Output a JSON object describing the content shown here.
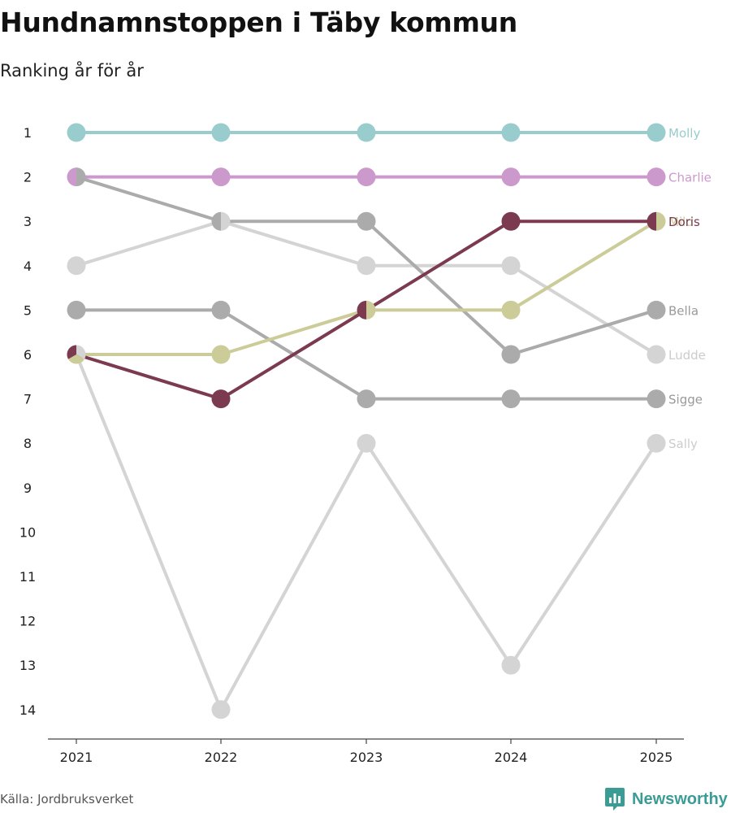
{
  "title": "Hundnamnstoppen i Täby kommun",
  "subtitle": "Ranking år för år",
  "source": "Källa: Jordbruksverket",
  "brand": "Newsworthy",
  "chart_data": {
    "type": "line",
    "subtype": "bump",
    "title": "Hundnamnstoppen i Täby kommun",
    "subtitle": "Ranking år för år",
    "categories": [
      "2021",
      "2022",
      "2023",
      "2024",
      "2025"
    ],
    "ylabel": "",
    "ylim": [
      1,
      14
    ],
    "y_inverted": true,
    "yticks": [
      1,
      2,
      3,
      4,
      5,
      6,
      7,
      8,
      9,
      10,
      11,
      12,
      13,
      14
    ],
    "series": [
      {
        "name": "Sally",
        "color": "#d4d4d4",
        "values": [
          6,
          14,
          8,
          13,
          8
        ]
      },
      {
        "name": "Ludde",
        "color": "#d4d4d4",
        "values": [
          4,
          3,
          4,
          4,
          6
        ]
      },
      {
        "name": "Sigge",
        "color": "#ababab",
        "values": [
          5,
          5,
          7,
          7,
          7
        ]
      },
      {
        "name": "Bella",
        "color": "#ababab",
        "values": [
          2,
          3,
          3,
          6,
          5
        ]
      },
      {
        "name": "Milo",
        "color": "#cccc99",
        "values": [
          6,
          6,
          5,
          5,
          3
        ]
      },
      {
        "name": "Doris",
        "color": "#7b3a50",
        "values": [
          6,
          7,
          5,
          3,
          3
        ]
      },
      {
        "name": "Charlie",
        "color": "#cc99cc",
        "values": [
          2,
          2,
          2,
          2,
          2
        ]
      },
      {
        "name": "Molly",
        "color": "#99cccc",
        "values": [
          1,
          1,
          1,
          1,
          1
        ]
      }
    ],
    "label_colors": {
      "Sally": "#cccccc",
      "Ludde": "#cccccc",
      "Sigge": "#999999",
      "Bella": "#999999"
    }
  }
}
